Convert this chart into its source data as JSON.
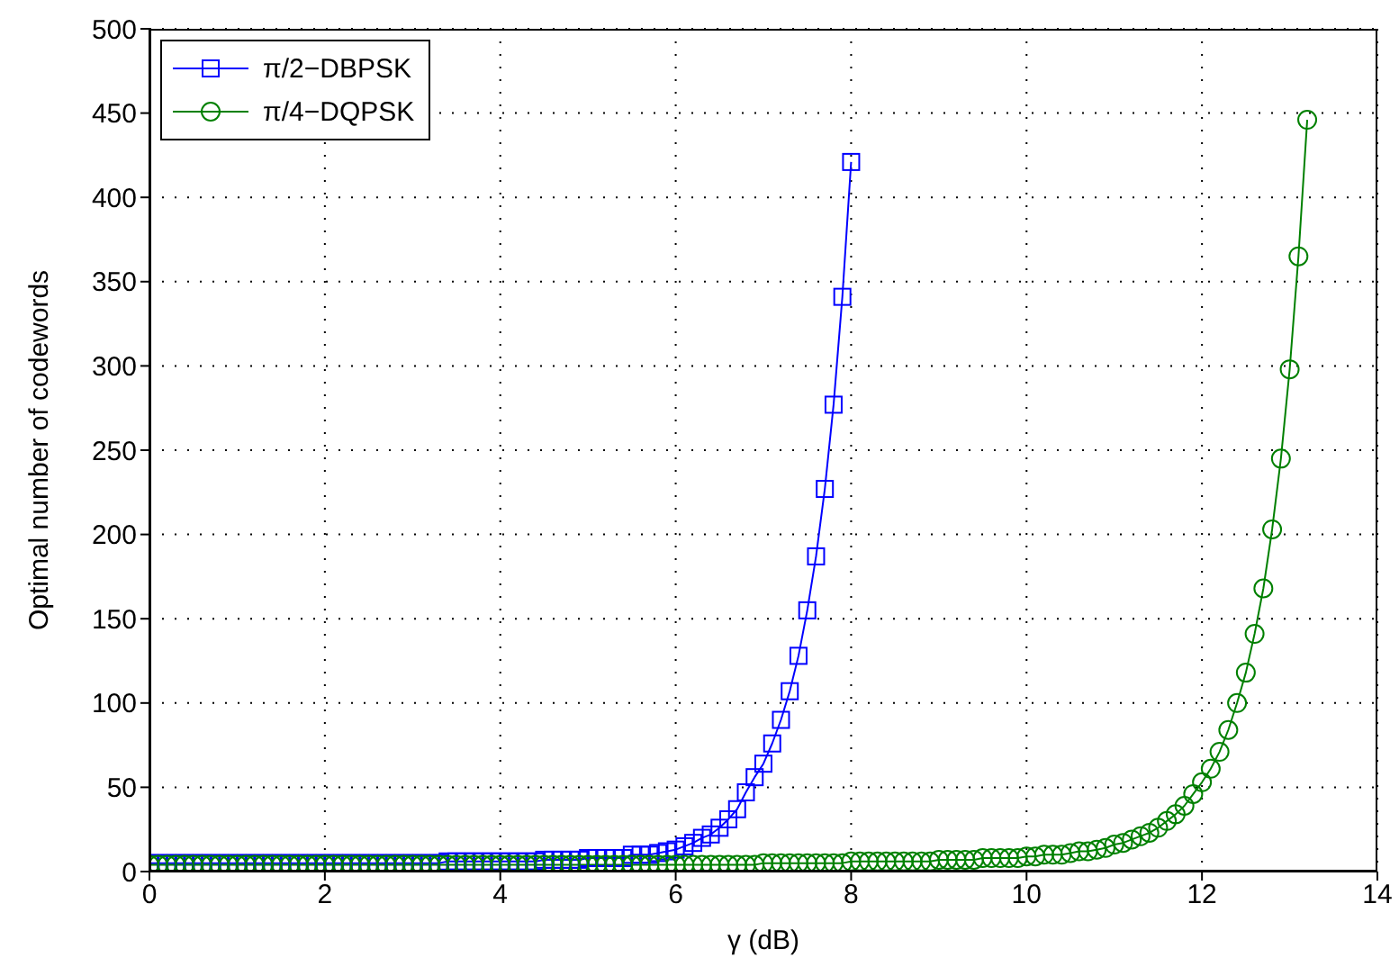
{
  "chart_data": {
    "type": "line",
    "xlabel": "γ (dB)",
    "ylabel": "Optimal number of codewords",
    "xlim": [
      0,
      14
    ],
    "xticks": [
      0,
      2,
      4,
      6,
      8,
      10,
      12,
      14
    ],
    "ylim": [
      0,
      500
    ],
    "yticks": [
      0,
      50,
      100,
      150,
      200,
      250,
      300,
      350,
      400,
      450,
      500
    ],
    "grid": true,
    "legend": "top left",
    "line_style": "solid",
    "series": [
      {
        "name": "π/2−DBPSK",
        "color": "#0000ff",
        "marker": "square",
        "x": [
          0,
          0.1,
          0.2,
          0.3,
          0.4,
          0.5,
          0.6,
          0.7,
          0.8,
          0.9,
          1,
          1.1,
          1.2,
          1.3,
          1.4,
          1.5,
          1.6,
          1.7,
          1.8,
          1.9,
          2,
          2.1,
          2.2,
          2.3,
          2.4,
          2.5,
          2.6,
          2.7,
          2.8,
          2.9,
          3,
          3.1,
          3.2,
          3.3,
          3.4,
          3.5,
          3.6,
          3.7,
          3.8,
          3.9,
          4,
          4.1,
          4.2,
          4.3,
          4.4,
          4.5,
          4.6,
          4.7,
          4.8,
          4.9,
          5,
          5.1,
          5.2,
          5.3,
          5.4,
          5.5,
          5.6,
          5.7,
          5.8,
          5.9,
          6,
          6.1,
          6.2,
          6.3,
          6.4,
          6.5,
          6.6,
          6.7,
          6.8,
          6.9,
          7,
          7.1,
          7.2,
          7.3,
          7.4,
          7.5,
          7.6,
          7.7,
          7.8,
          7.9,
          8
        ],
        "values": [
          5,
          5,
          5,
          5,
          5,
          5,
          5,
          5,
          5,
          5,
          5,
          5,
          5,
          5,
          5,
          5,
          5,
          5,
          5,
          5,
          5,
          5,
          5,
          5,
          5,
          5,
          5,
          5,
          5,
          5,
          5,
          5,
          5,
          5,
          6,
          6,
          6,
          6,
          6,
          6,
          6,
          6,
          6,
          6,
          6,
          7,
          7,
          7,
          7,
          7,
          8,
          8,
          8,
          8,
          8,
          10,
          10,
          10,
          11,
          12,
          13,
          15,
          17,
          20,
          22,
          26,
          31,
          37,
          47,
          56,
          64,
          76,
          90,
          107,
          128,
          155,
          187,
          227,
          277,
          341,
          421
        ]
      },
      {
        "name": "π/4−DQPSK",
        "color": "#008000",
        "marker": "circle",
        "x": [
          0,
          0.1,
          0.2,
          0.3,
          0.4,
          0.5,
          0.6,
          0.7,
          0.8,
          0.9,
          1,
          1.1,
          1.2,
          1.3,
          1.4,
          1.5,
          1.6,
          1.7,
          1.8,
          1.9,
          2,
          2.1,
          2.2,
          2.3,
          2.4,
          2.5,
          2.6,
          2.7,
          2.8,
          2.9,
          3,
          3.1,
          3.2,
          3.3,
          3.4,
          3.5,
          3.6,
          3.7,
          3.8,
          3.9,
          4,
          4.1,
          4.2,
          4.3,
          4.4,
          4.5,
          4.6,
          4.7,
          4.8,
          4.9,
          5,
          5.1,
          5.2,
          5.3,
          5.4,
          5.5,
          5.6,
          5.7,
          5.8,
          5.9,
          6,
          6.1,
          6.2,
          6.3,
          6.4,
          6.5,
          6.6,
          6.7,
          6.8,
          6.9,
          7,
          7.1,
          7.2,
          7.3,
          7.4,
          7.5,
          7.6,
          7.7,
          7.8,
          7.9,
          8,
          8.1,
          8.2,
          8.3,
          8.4,
          8.5,
          8.6,
          8.7,
          8.8,
          8.9,
          9,
          9.1,
          9.2,
          9.3,
          9.4,
          9.5,
          9.6,
          9.7,
          9.8,
          9.9,
          10,
          10.1,
          10.2,
          10.3,
          10.4,
          10.5,
          10.6,
          10.7,
          10.8,
          10.9,
          11,
          11.1,
          11.2,
          11.3,
          11.4,
          11.5,
          11.6,
          11.7,
          11.8,
          11.9,
          12,
          12.1,
          12.2,
          12.3,
          12.4,
          12.5,
          12.6,
          12.7,
          12.8,
          12.9,
          13,
          13.1,
          13.2
        ],
        "values": [
          4,
          4,
          4,
          4,
          4,
          4,
          4,
          4,
          4,
          4,
          4,
          4,
          4,
          4,
          4,
          4,
          4,
          4,
          4,
          4,
          4,
          4,
          4,
          4,
          4,
          4,
          4,
          4,
          4,
          4,
          4,
          4,
          4,
          4,
          4,
          4,
          4,
          4,
          4,
          4,
          4,
          4,
          4,
          4,
          4,
          4,
          4,
          4,
          4,
          4,
          4,
          4,
          4,
          4,
          4,
          4,
          4,
          4,
          4,
          4,
          4,
          4,
          4,
          4,
          4,
          4,
          4,
          4,
          4,
          4,
          5,
          5,
          5,
          5,
          5,
          5,
          5,
          5,
          5,
          5,
          6,
          6,
          6,
          6,
          6,
          6,
          6,
          6,
          6,
          6,
          7,
          7,
          7,
          7,
          7,
          8,
          8,
          8,
          8,
          8,
          9,
          9,
          10,
          10,
          10,
          11,
          12,
          12,
          13,
          14,
          16,
          17,
          19,
          21,
          23,
          26,
          30,
          34,
          39,
          46,
          53,
          61,
          71,
          84,
          100,
          118,
          141,
          168,
          203,
          245,
          298,
          365,
          446
        ]
      }
    ]
  }
}
